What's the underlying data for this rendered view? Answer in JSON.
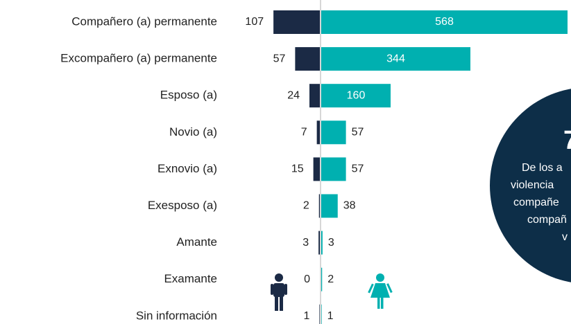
{
  "chart_data": {
    "type": "butterfly",
    "categories": [
      "Compañero (a)  permanente",
      "Excompañero (a) permanente",
      "Esposo (a)",
      "Novio (a)",
      "Exnovio (a)",
      "Exesposo (a)",
      "Amante",
      "Examante",
      "Sin información"
    ],
    "series": [
      {
        "color": "#1b2a45",
        "values": [
          107,
          57,
          24,
          7,
          15,
          2,
          3,
          0,
          1
        ]
      },
      {
        "color": "#00b0b0",
        "values": [
          568,
          344,
          160,
          57,
          57,
          38,
          3,
          2,
          1
        ]
      }
    ]
  },
  "callout": {
    "number": "7",
    "lines": [
      "De los a",
      "violencia",
      "compañe",
      "compañ",
      "v"
    ]
  }
}
